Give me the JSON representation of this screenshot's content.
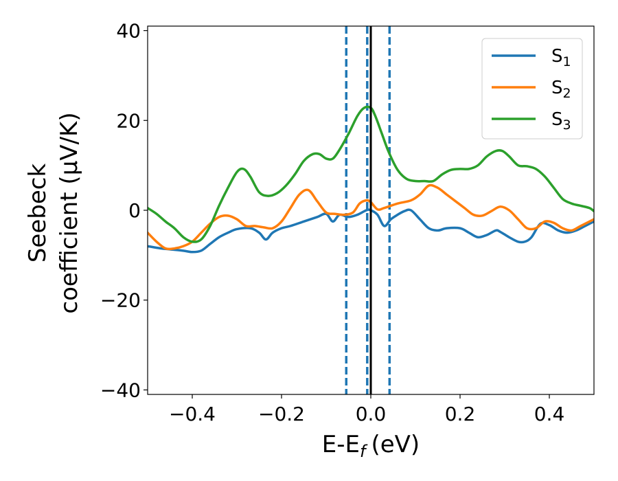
{
  "chart_data": {
    "type": "line",
    "xlabel": "E-E",
    "xlabel_sub": "f",
    "xlabel_unit": "(eV)",
    "ylabel_line1": "Seebeck",
    "ylabel_line2": "coefficient  (μV/K)",
    "xlim": [
      -0.5,
      0.5
    ],
    "ylim": [
      -41,
      41
    ],
    "xticks": [
      -0.4,
      -0.2,
      0.0,
      0.2,
      0.4
    ],
    "xtick_labels": [
      "−0.4",
      "−0.2",
      "0.0",
      "0.2",
      "0.4"
    ],
    "yticks": [
      -40,
      -20,
      0,
      20,
      40
    ],
    "ytick_labels": [
      "−40",
      "−20",
      "0",
      "20",
      "40"
    ],
    "grid": false,
    "legend_position": "top-right",
    "vlines": [
      {
        "x": -0.055,
        "style": "dashed",
        "color": "#1f77b4"
      },
      {
        "x": -0.008,
        "style": "dashed",
        "color": "#1f77b4"
      },
      {
        "x": 0.042,
        "style": "dashed",
        "color": "#1f77b4"
      },
      {
        "x": 0.0,
        "style": "solid",
        "color": "#000000"
      }
    ],
    "series": [
      {
        "name": "S",
        "sub": "1",
        "color": "#1f77b4",
        "x": [
          -0.5,
          -0.47,
          -0.45,
          -0.42,
          -0.4,
          -0.38,
          -0.36,
          -0.34,
          -0.32,
          -0.3,
          -0.27,
          -0.25,
          -0.235,
          -0.22,
          -0.2,
          -0.18,
          -0.15,
          -0.12,
          -0.1,
          -0.085,
          -0.07,
          -0.05,
          -0.03,
          -0.01,
          0.0,
          0.015,
          0.03,
          0.045,
          0.06,
          0.075,
          0.09,
          0.11,
          0.13,
          0.15,
          0.17,
          0.2,
          0.22,
          0.24,
          0.26,
          0.28,
          0.29,
          0.31,
          0.33,
          0.345,
          0.36,
          0.38,
          0.4,
          0.42,
          0.44,
          0.46,
          0.48,
          0.5
        ],
        "y": [
          -8,
          -8.5,
          -8.7,
          -9,
          -9.3,
          -9,
          -7.5,
          -6,
          -5,
          -4.2,
          -4,
          -5,
          -6.5,
          -5,
          -4,
          -3.5,
          -2.5,
          -1.5,
          -0.8,
          -2.5,
          -1,
          -1.5,
          -1,
          0,
          0,
          -1,
          -3.5,
          -2,
          -1,
          -0.2,
          0,
          -2,
          -4,
          -4.5,
          -4,
          -4,
          -5,
          -6,
          -5.5,
          -4.5,
          -4.8,
          -6,
          -7,
          -7,
          -6,
          -3,
          -3.3,
          -4.5,
          -5,
          -4.5,
          -3.5,
          -2.5
        ]
      },
      {
        "name": "S",
        "sub": "2",
        "color": "#ff7f0e",
        "x": [
          -0.5,
          -0.48,
          -0.46,
          -0.44,
          -0.42,
          -0.4,
          -0.38,
          -0.36,
          -0.34,
          -0.32,
          -0.3,
          -0.28,
          -0.26,
          -0.24,
          -0.22,
          -0.2,
          -0.18,
          -0.16,
          -0.14,
          -0.12,
          -0.1,
          -0.08,
          -0.06,
          -0.04,
          -0.025,
          -0.01,
          0.0,
          0.015,
          0.03,
          0.06,
          0.09,
          0.11,
          0.13,
          0.15,
          0.17,
          0.19,
          0.21,
          0.23,
          0.25,
          0.27,
          0.29,
          0.31,
          0.33,
          0.35,
          0.37,
          0.39,
          0.41,
          0.43,
          0.45,
          0.47,
          0.5
        ],
        "y": [
          -5,
          -7,
          -8.5,
          -8.5,
          -8,
          -7,
          -5,
          -3,
          -1.5,
          -1.2,
          -2,
          -3.5,
          -3.5,
          -3.8,
          -4,
          -2.5,
          0.5,
          3.5,
          4.5,
          2,
          -0.5,
          -0.8,
          -1,
          -0.5,
          1.5,
          2.2,
          1.8,
          0.2,
          0.5,
          1.5,
          2.2,
          3.5,
          5.5,
          5,
          3.5,
          2,
          0.5,
          -1,
          -1.2,
          -0.2,
          0.8,
          0,
          -2,
          -4,
          -4,
          -2.5,
          -2.8,
          -4,
          -4.5,
          -3.5,
          -2
        ]
      },
      {
        "name": "S",
        "sub": "3",
        "color": "#2ca02c",
        "x": [
          -0.5,
          -0.48,
          -0.46,
          -0.44,
          -0.42,
          -0.4,
          -0.38,
          -0.36,
          -0.34,
          -0.32,
          -0.3,
          -0.285,
          -0.27,
          -0.25,
          -0.23,
          -0.21,
          -0.19,
          -0.17,
          -0.15,
          -0.13,
          -0.115,
          -0.1,
          -0.085,
          -0.07,
          -0.05,
          -0.03,
          -0.015,
          0.0,
          0.01,
          0.025,
          0.04,
          0.06,
          0.08,
          0.1,
          0.12,
          0.14,
          0.16,
          0.18,
          0.2,
          0.22,
          0.24,
          0.26,
          0.28,
          0.295,
          0.31,
          0.33,
          0.35,
          0.37,
          0.39,
          0.41,
          0.43,
          0.45,
          0.47,
          0.49,
          0.5
        ],
        "y": [
          0.5,
          -0.8,
          -2.5,
          -4,
          -6,
          -7,
          -6.5,
          -3.5,
          1,
          5,
          8.5,
          9.2,
          7.5,
          4,
          3.2,
          3.8,
          5.5,
          8,
          11,
          12.5,
          12.5,
          11.5,
          11.5,
          13.5,
          17,
          21,
          22.8,
          22.8,
          21,
          17,
          13,
          9,
          7,
          6.5,
          6.5,
          6.5,
          8,
          9,
          9.2,
          9.2,
          10,
          12,
          13.2,
          13.2,
          12,
          10,
          9.8,
          9.2,
          7.5,
          5,
          2.5,
          1.5,
          1,
          0.5,
          -0.2
        ]
      }
    ]
  }
}
